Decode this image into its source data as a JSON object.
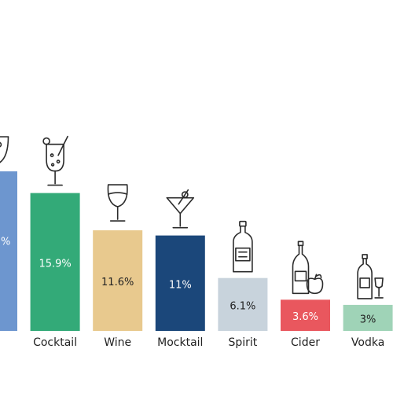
{
  "chart_data": {
    "type": "bar",
    "categories": [
      "Punch",
      "Cocktail",
      "Wine",
      "Mocktail",
      "Spirit",
      "Cider",
      "Vodka"
    ],
    "values": [
      18.4,
      15.9,
      11.6,
      11,
      6.1,
      3.6,
      3
    ],
    "value_labels": [
      "",
      "15.9%",
      "11.6%",
      "11%",
      "6.1%",
      "3.6%",
      "3%"
    ],
    "category_labels": [
      "ch",
      "Cocktail",
      "Wine",
      "Mocktail",
      "Spirit",
      "Cider",
      "Vodka"
    ],
    "partial_label_fragment": "%",
    "colors": [
      "#6d96cf",
      "#33aa78",
      "#e8c98e",
      "#1b477a",
      "#c8d3dc",
      "#e9575e",
      "#9fd3b7"
    ],
    "label_colors": [
      "#ffffff",
      "#ffffff",
      "#222222",
      "#ffffff",
      "#222222",
      "#ffffff",
      "#222222"
    ],
    "icons": [
      "punch-bowl-icon",
      "cocktail-glass-icon",
      "wine-glass-icon",
      "martini-glass-icon",
      "spirit-bottle-icon",
      "cider-bottle-apple-icon",
      "vodka-bottle-glass-icon"
    ],
    "ylim": [
      0,
      18.4
    ],
    "grid": false,
    "legend": "none",
    "xlabel": "",
    "ylabel": "",
    "title": ""
  }
}
